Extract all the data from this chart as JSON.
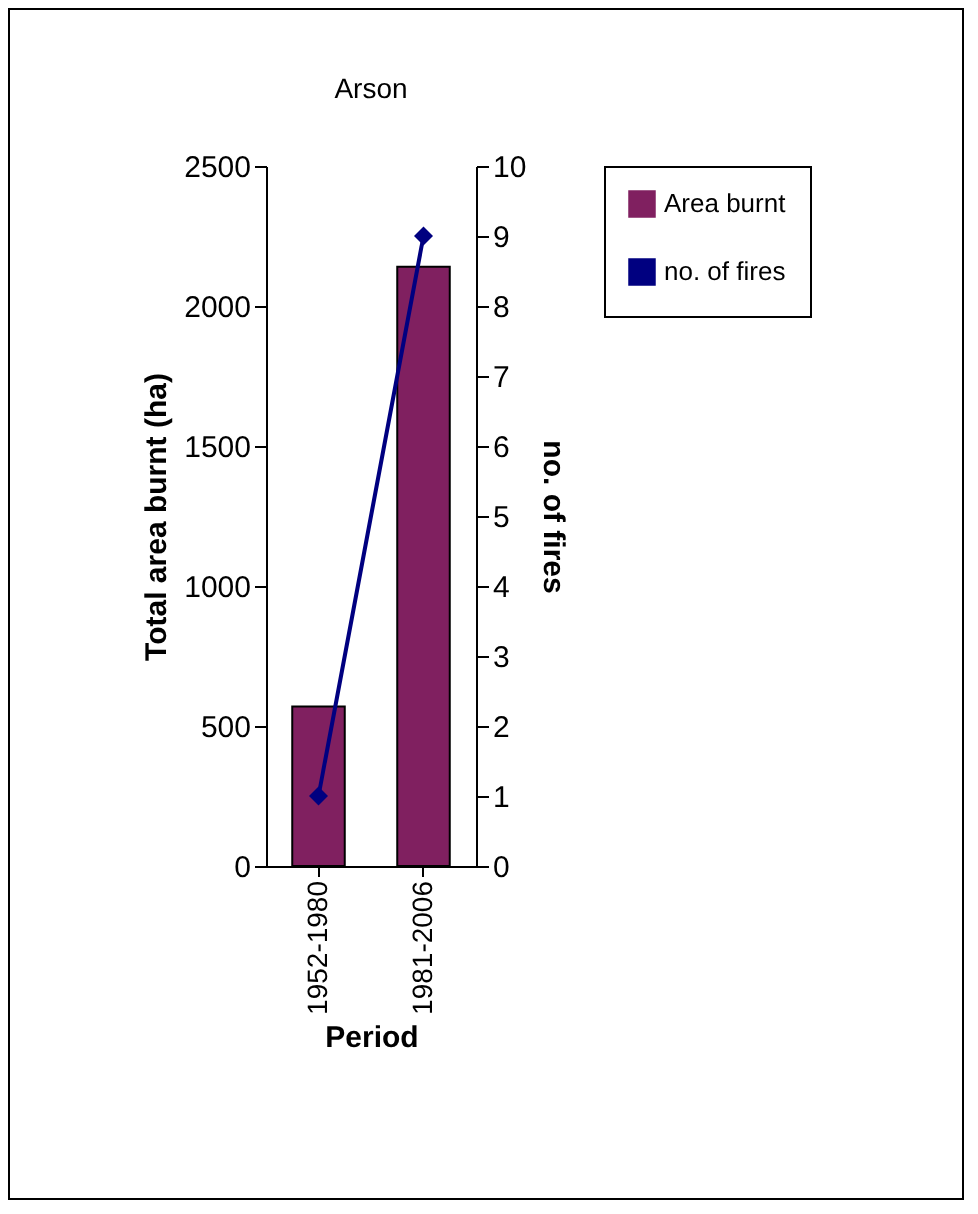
{
  "chart_data": {
    "type": "bar",
    "title": "Arson",
    "xlabel": "Period",
    "ylabel": "Total area burnt (ha)",
    "y2label": "no. of fires",
    "categories": [
      "1952-1980",
      "1981-2006"
    ],
    "series": [
      {
        "name": "Area burnt",
        "color": "#802060",
        "values": [
          570,
          2140
        ]
      },
      {
        "name": "no. of fires",
        "type": "line",
        "axis": "y2",
        "color": "#000080",
        "values": [
          1,
          9
        ]
      }
    ],
    "ylim": [
      0,
      2500
    ],
    "yticks": [
      0,
      500,
      1000,
      1500,
      2000,
      2500
    ],
    "y2lim": [
      0,
      10
    ],
    "y2ticks": [
      0,
      1,
      2,
      3,
      4,
      5,
      6,
      7,
      8,
      9,
      10
    ],
    "marker": "diamond",
    "line_style": "solid",
    "grid": false,
    "legend": "right"
  }
}
